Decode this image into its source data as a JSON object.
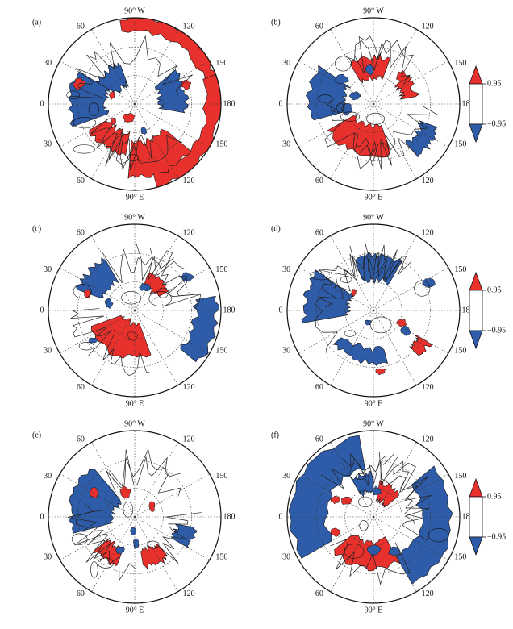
{
  "figure": {
    "panels": [
      {
        "id": "a",
        "label": "(a)"
      },
      {
        "id": "b",
        "label": "(b)"
      },
      {
        "id": "c",
        "label": "(c)"
      },
      {
        "id": "d",
        "label": "(d)"
      },
      {
        "id": "e",
        "label": "(e)"
      },
      {
        "id": "f",
        "label": "(f)"
      }
    ],
    "longitude_labels": {
      "top": "90° W",
      "bottom": "90° E",
      "left": "0",
      "right": "180",
      "upper_left_1": "60",
      "upper_left_2": "30",
      "lower_left_1": "30",
      "lower_left_2": "60",
      "upper_right_1": "120",
      "upper_right_2": "150",
      "lower_right_1": "150",
      "lower_right_2": "120"
    },
    "colorbar": {
      "upper_label": "0.95",
      "lower_label": "−0.95",
      "colors": {
        "positive": "#e8312c",
        "negative": "#2f5ca8",
        "neutral": "#ffffff"
      }
    }
  }
}
